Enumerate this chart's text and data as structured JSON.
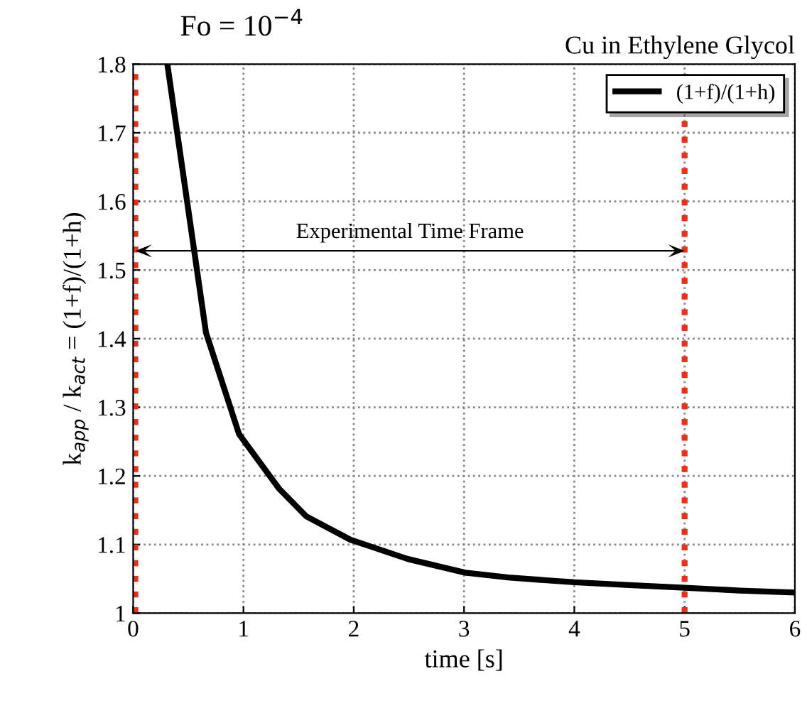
{
  "chart_data": {
    "type": "line",
    "title": "Fo = 10$^{−4}$",
    "subtitle": "Cu in Ethylene Glycol",
    "xlabel": "time [s]",
    "ylabel": "k$_{app}$ / k$_{act}$ = (1+f)/(1+h)",
    "series": [
      {
        "name": "(1+f)/(1+h)",
        "color": "#000000",
        "x": [
          0.31,
          0.55,
          0.66,
          0.96,
          1.32,
          1.57,
          1.97,
          2.49,
          3.01,
          3.4,
          4.0,
          4.5,
          5.0,
          5.5,
          6.0
        ],
        "values": [
          1.8,
          1.532,
          1.409,
          1.261,
          1.182,
          1.141,
          1.107,
          1.079,
          1.059,
          1.052,
          1.045,
          1.041,
          1.037,
          1.033,
          1.03
        ]
      }
    ],
    "ref_lines": [
      {
        "axis": "x",
        "value": 0.02,
        "color": "#e8311a",
        "line_style": "dotted"
      },
      {
        "axis": "x",
        "value": 5,
        "color": "#e8311a",
        "line_style": "dotted"
      }
    ],
    "annotations": [
      "Experimental Time Frame"
    ],
    "xlim": [
      0,
      6
    ],
    "ylim": [
      1,
      1.8
    ],
    "xticks": [
      0,
      1,
      2,
      3,
      4,
      5,
      6
    ],
    "yticks": [
      1,
      1.1,
      1.2,
      1.3,
      1.4,
      1.5,
      1.6,
      1.7,
      1.8
    ],
    "grid": true,
    "legend": "top right",
    "line_style": "solid",
    "marker": "none"
  }
}
